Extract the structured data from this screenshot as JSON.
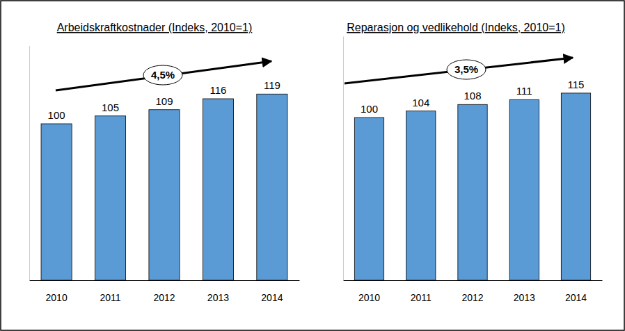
{
  "chart_data": [
    {
      "type": "bar",
      "title": "Arbeidskraftkostnader (Indeks, 2010=1)",
      "categories": [
        "2010",
        "2011",
        "2012",
        "2013",
        "2014"
      ],
      "values": [
        100,
        105,
        109,
        116,
        119
      ],
      "color": "#5b9bd5",
      "ylim": [
        0,
        150
      ],
      "data_labels": true,
      "tick_labels": "x",
      "annotations": [
        {
          "text": "4,5%"
        }
      ]
    },
    {
      "type": "bar",
      "title": "Reparasjon og vedlikehold (Indeks, 2010=1)",
      "categories": [
        "2010",
        "2011",
        "2012",
        "2013",
        "2014"
      ],
      "values": [
        100,
        104,
        108,
        111,
        115
      ],
      "color": "#5b9bd5",
      "ylim": [
        0,
        150
      ],
      "data_labels": true,
      "tick_labels": "x",
      "annotations": [
        {
          "text": "3,5%"
        }
      ]
    }
  ]
}
